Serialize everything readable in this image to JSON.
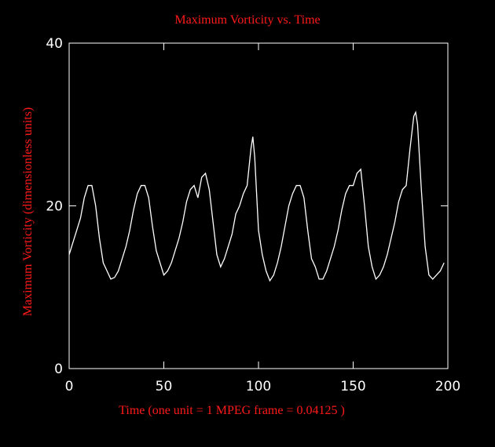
{
  "chart_data": {
    "type": "line",
    "title": "Maximum Vorticity vs. Time",
    "x_label": "Time (one unit = 1 MPEG frame = 0.04125 )",
    "y_label": "Maximum Vorticity (dimensionless units)",
    "xlim": [
      0,
      200
    ],
    "ylim": [
      0,
      40
    ],
    "xticks": [
      0,
      50,
      100,
      150,
      200
    ],
    "yticks": [
      0,
      20,
      40
    ],
    "x": [
      0,
      2,
      4,
      6,
      8,
      10,
      12,
      14,
      16,
      18,
      20,
      22,
      24,
      26,
      28,
      30,
      32,
      34,
      36,
      38,
      40,
      42,
      44,
      46,
      48,
      50,
      52,
      54,
      56,
      58,
      60,
      62,
      64,
      66,
      68,
      70,
      72,
      74,
      76,
      78,
      80,
      82,
      84,
      86,
      88,
      90,
      92,
      94,
      96,
      97,
      98,
      100,
      102,
      104,
      106,
      108,
      110,
      112,
      114,
      116,
      118,
      120,
      122,
      124,
      126,
      128,
      130,
      132,
      134,
      136,
      138,
      140,
      142,
      144,
      146,
      148,
      150,
      152,
      154,
      156,
      158,
      160,
      162,
      164,
      166,
      168,
      170,
      172,
      174,
      176,
      178,
      180,
      182,
      183,
      184,
      186,
      188,
      190,
      192,
      194,
      196,
      198
    ],
    "series": [
      {
        "name": "Maximum Vorticity",
        "color": "#ffffff",
        "values": [
          14,
          15.5,
          17,
          18.5,
          21,
          22.5,
          22.5,
          20,
          16,
          13,
          12,
          11,
          11.2,
          12,
          13.5,
          15,
          17,
          19.5,
          21.5,
          22.5,
          22.5,
          21,
          17.5,
          14.5,
          13,
          11.5,
          12,
          13,
          14.5,
          16,
          18,
          20.5,
          22,
          22.5,
          21,
          23.5,
          24,
          22,
          18,
          14,
          12.5,
          13.5,
          15,
          16.5,
          19,
          20,
          21.5,
          22.5,
          27,
          28.5,
          26,
          17,
          14,
          12,
          10.8,
          11.5,
          13,
          15,
          17.5,
          20,
          21.5,
          22.5,
          22.5,
          21,
          17,
          13.5,
          12.5,
          11,
          11,
          12,
          13.5,
          15,
          17,
          19.5,
          21.5,
          22.5,
          22.5,
          24,
          24.5,
          20,
          15,
          12.5,
          11,
          11.5,
          12.5,
          14,
          16,
          18,
          20.5,
          22,
          22.5,
          27,
          31,
          31.5,
          30,
          22,
          15,
          11.5,
          11,
          11.5,
          12,
          13
        ]
      }
    ]
  }
}
